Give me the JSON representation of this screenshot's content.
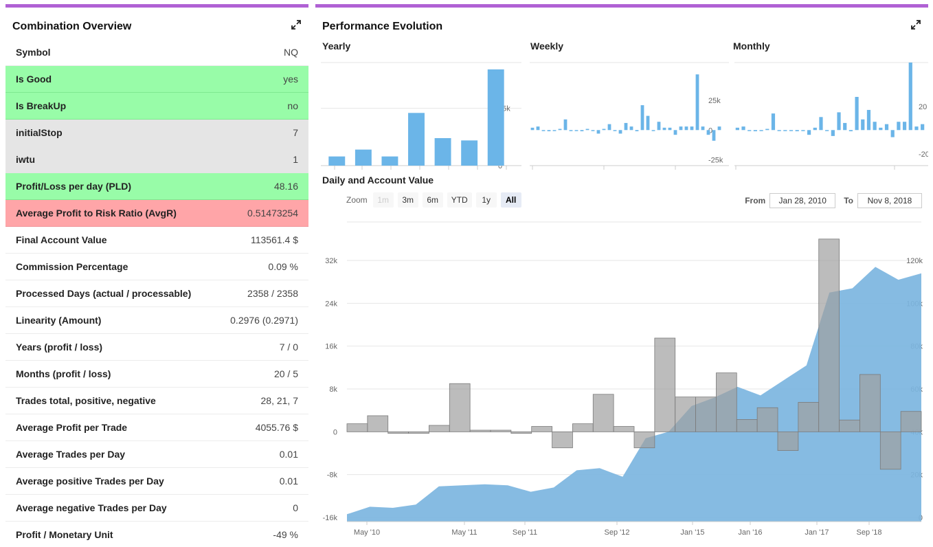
{
  "left": {
    "title": "Combination Overview",
    "rows": [
      {
        "label": "Symbol",
        "value": "NQ",
        "state": ""
      },
      {
        "label": "Is Good",
        "value": "yes",
        "state": "green"
      },
      {
        "label": "Is BreakUp",
        "value": "no",
        "state": "green"
      },
      {
        "label": "initialStop",
        "value": "7",
        "state": "gray"
      },
      {
        "label": "iwtu",
        "value": "1",
        "state": "gray"
      },
      {
        "label": "Profit/Loss per day (PLD)",
        "value": "48.16",
        "state": "green"
      },
      {
        "label": "Average Profit to Risk Ratio (AvgR)",
        "value": "0.51473254",
        "state": "red"
      },
      {
        "label": "Final Account Value",
        "value": "113561.4 $",
        "state": ""
      },
      {
        "label": "Commission Percentage",
        "value": "0.09 %",
        "state": ""
      },
      {
        "label": "Processed Days (actual / processable)",
        "value": "2358 / 2358",
        "state": ""
      },
      {
        "label": "Linearity (Amount)",
        "value": "0.2976 (0.2971)",
        "state": ""
      },
      {
        "label": "Years (profit / loss)",
        "value": "7 / 0",
        "state": ""
      },
      {
        "label": "Months (profit / loss)",
        "value": "20 / 5",
        "state": ""
      },
      {
        "label": "Trades total, positive, negative",
        "value": "28, 21, 7",
        "state": ""
      },
      {
        "label": "Average Profit per Trade",
        "value": "4055.76 $",
        "state": ""
      },
      {
        "label": "Average Trades per Day",
        "value": "0.01",
        "state": ""
      },
      {
        "label": "Average positive Trades per Day",
        "value": "0.01",
        "state": ""
      },
      {
        "label": "Average negative Trades per Day",
        "value": "0",
        "state": ""
      },
      {
        "label": "Profit / Monetary Unit",
        "value": "-49 %",
        "state": ""
      }
    ]
  },
  "right": {
    "title": "Performance Evolution",
    "yearly_label": "Yearly",
    "weekly_label": "Weekly",
    "monthly_label": "Monthly",
    "daily_label": "Daily and Account Value",
    "zoom_label": "Zoom",
    "zoom_buttons": [
      "1m",
      "3m",
      "6m",
      "YTD",
      "1y",
      "All"
    ],
    "from_label": "From",
    "from_value": "Jan 28, 2010",
    "to_label": "To",
    "to_value": "Nov 8, 2018"
  },
  "colors": {
    "accent": "#b061d4",
    "bar_blue": "#6bb5e8",
    "area_blue": "#7cb5e0",
    "gray_step": "#b3b3b3",
    "good": "#98fca8",
    "bad": "#ffa5a8"
  },
  "chart_data": [
    {
      "type": "bar",
      "name": "yearly",
      "values": [
        4,
        7,
        4,
        23,
        12,
        11,
        42
      ],
      "ylim": [
        0,
        45
      ],
      "yticks": [
        0,
        25
      ],
      "ytick_labels": [
        "0",
        "25k"
      ]
    },
    {
      "type": "bar",
      "name": "weekly",
      "values": [
        2,
        3,
        0,
        -1,
        0,
        1,
        9,
        0,
        0,
        -1,
        1,
        0,
        -3,
        1,
        5,
        0,
        -3,
        6,
        3,
        -1,
        21,
        12,
        0,
        7,
        2,
        2,
        -4,
        3,
        3,
        3,
        47,
        3,
        -4,
        -9,
        3
      ],
      "ylim": [
        -30,
        57
      ],
      "yticks": [
        -25,
        0,
        25
      ],
      "ytick_labels": [
        "-25k",
        "0",
        "25k"
      ]
    },
    {
      "type": "bar",
      "name": "monthly",
      "values": [
        2,
        3,
        0,
        -1,
        0,
        1,
        14,
        0,
        0,
        0,
        -1,
        0,
        -4,
        2,
        11,
        0,
        -5,
        15,
        6,
        -1,
        28,
        9,
        17,
        7,
        2,
        5,
        -6,
        7,
        7,
        57,
        3,
        5
      ],
      "ylim": [
        -30,
        57
      ],
      "yticks": [
        -20,
        20
      ],
      "ytick_labels": [
        "-20",
        "20"
      ]
    },
    {
      "type": "area",
      "name": "daily_and_account_value",
      "x_ticks": [
        "May '10",
        "May '11",
        "Sep '11",
        "Sep '12",
        "Jan '15",
        "Jan '16",
        "Jan '17",
        "Sep '18"
      ],
      "left_axis": {
        "ticks": [
          -16000,
          -8000,
          0,
          8000,
          16000,
          24000,
          32000
        ],
        "labels": [
          "-16k",
          "-8k",
          "0",
          "8k",
          "16k",
          "24k",
          "32k"
        ]
      },
      "right_axis": {
        "ticks": [
          0,
          20000,
          40000,
          60000,
          80000,
          100000,
          120000
        ],
        "labels": [
          "0",
          "20k",
          "40k",
          "60k",
          "80k",
          "100k",
          "120k"
        ]
      },
      "series": [
        {
          "values": [
            1500,
            3000,
            -300,
            -300,
            1200,
            9000,
            300,
            300,
            -300,
            1000,
            -3000,
            1500,
            7000,
            1000,
            -3000,
            17500,
            6500,
            6500,
            11000,
            2300,
            4500,
            -3500,
            5500,
            36000,
            2200,
            10700,
            -7000,
            3800
          ]
        },
        {
          "values": [
            1500,
            5000,
            4500,
            6000,
            14500,
            15000,
            15500,
            15000,
            12000,
            14000,
            22000,
            23000,
            19000,
            37000,
            40000,
            52000,
            56000,
            61000,
            57000,
            64000,
            71000,
            105000,
            107000,
            117000,
            111000,
            114000
          ]
        }
      ]
    }
  ]
}
